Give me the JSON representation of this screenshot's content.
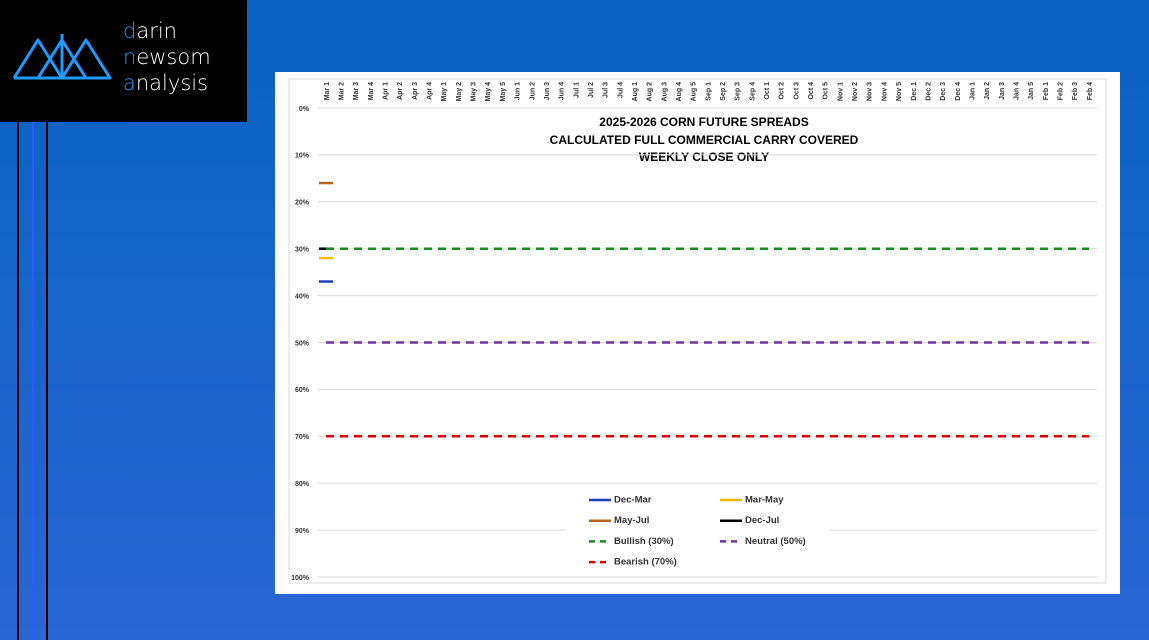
{
  "brand": [
    "darin",
    "newsom",
    "analysis"
  ],
  "chart_data": {
    "type": "line",
    "title": "2025-2026 CORN FUTURE SPREADS",
    "subtitle": "CALCULATED FULL COMMERCIAL CARRY COVERED",
    "note": "WEEKLY CLOSE ONLY",
    "y_inverted": true,
    "grid": true,
    "legend": "bottom",
    "categories": [
      "Mar 1",
      "Mar 2",
      "Mar 3",
      "Mar 4",
      "Apr 1",
      "Apr 2",
      "Apr 3",
      "Apr 4",
      "May 1",
      "May 2",
      "May 3",
      "May 4",
      "May 5",
      "Jun 1",
      "Jun 2",
      "Jun 3",
      "Jun 4",
      "Jul 1",
      "Jul 2",
      "Jul 3",
      "Jul 4",
      "Aug 1",
      "Aug 2",
      "Aug 3",
      "Aug 4",
      "Aug 5",
      "Sep 1",
      "Sep 2",
      "Sep 3",
      "Sep 4",
      "Oct 1",
      "Oct 2",
      "Oct 3",
      "Oct 4",
      "Oct 5",
      "Nov 1",
      "Nov 2",
      "Nov 3",
      "Nov 4",
      "Nov 5",
      "Dec 1",
      "Dec 2",
      "Dec 3",
      "Dec 4",
      "Jan 1",
      "Jan 2",
      "Jan 3",
      "Jan 4",
      "Jan 5",
      "Feb 1",
      "Feb 2",
      "Feb 3",
      "Feb 4"
    ],
    "ylim": [
      0,
      100
    ],
    "yticks": [
      {
        "value": 0,
        "label": "0%"
      },
      {
        "value": 10,
        "label": "10%"
      },
      {
        "value": 20,
        "label": "20%"
      },
      {
        "value": 30,
        "label": "30%"
      },
      {
        "value": 40,
        "label": "40%"
      },
      {
        "value": 50,
        "label": "50%"
      },
      {
        "value": 60,
        "label": "60%"
      },
      {
        "value": 70,
        "label": "70%"
      },
      {
        "value": 80,
        "label": "80%"
      },
      {
        "value": 90,
        "label": "90%"
      },
      {
        "value": 100,
        "label": "100%"
      }
    ],
    "series": [
      {
        "name": "Dec-Mar",
        "color": "#1f3fbf",
        "dashed": false,
        "values": [
          37,
          null,
          null,
          null,
          null,
          null,
          null,
          null,
          null,
          null,
          null,
          null,
          null,
          null,
          null,
          null,
          null,
          null,
          null,
          null,
          null,
          null,
          null,
          null,
          null,
          null,
          null,
          null,
          null,
          null,
          null,
          null,
          null,
          null,
          null,
          null,
          null,
          null,
          null,
          null,
          null,
          null,
          null,
          null,
          null,
          null,
          null,
          null,
          null,
          null,
          null,
          null,
          null
        ]
      },
      {
        "name": "Mar-May",
        "color": "#f5b800",
        "dashed": false,
        "values": [
          32,
          null,
          null,
          null,
          null,
          null,
          null,
          null,
          null,
          null,
          null,
          null,
          null,
          null,
          null,
          null,
          null,
          null,
          null,
          null,
          null,
          null,
          null,
          null,
          null,
          null,
          null,
          null,
          null,
          null,
          null,
          null,
          null,
          null,
          null,
          null,
          null,
          null,
          null,
          null,
          null,
          null,
          null,
          null,
          null,
          null,
          null,
          null,
          null,
          null,
          null,
          null,
          null
        ]
      },
      {
        "name": "May-Jul",
        "color": "#b5651d",
        "dashed": false,
        "values": [
          16,
          null,
          null,
          null,
          null,
          null,
          null,
          null,
          null,
          null,
          null,
          null,
          null,
          null,
          null,
          null,
          null,
          null,
          null,
          null,
          null,
          null,
          null,
          null,
          null,
          null,
          null,
          null,
          null,
          null,
          null,
          null,
          null,
          null,
          null,
          null,
          null,
          null,
          null,
          null,
          null,
          null,
          null,
          null,
          null,
          null,
          null,
          null,
          null,
          null,
          null,
          null,
          null
        ]
      },
      {
        "name": "Dec-Jul",
        "color": "#000000",
        "dashed": false,
        "values": [
          30,
          null,
          null,
          null,
          null,
          null,
          null,
          null,
          null,
          null,
          null,
          null,
          null,
          null,
          null,
          null,
          null,
          null,
          null,
          null,
          null,
          null,
          null,
          null,
          null,
          null,
          null,
          null,
          null,
          null,
          null,
          null,
          null,
          null,
          null,
          null,
          null,
          null,
          null,
          null,
          null,
          null,
          null,
          null,
          null,
          null,
          null,
          null,
          null,
          null,
          null,
          null,
          null
        ]
      },
      {
        "name": "Bullish (30%)",
        "color": "#1a8a1a",
        "dashed": true,
        "values": [
          30,
          30,
          30,
          30,
          30,
          30,
          30,
          30,
          30,
          30,
          30,
          30,
          30,
          30,
          30,
          30,
          30,
          30,
          30,
          30,
          30,
          30,
          30,
          30,
          30,
          30,
          30,
          30,
          30,
          30,
          30,
          30,
          30,
          30,
          30,
          30,
          30,
          30,
          30,
          30,
          30,
          30,
          30,
          30,
          30,
          30,
          30,
          30,
          30,
          30,
          30,
          30,
          30
        ]
      },
      {
        "name": "Neutral (50%)",
        "color": "#7030a0",
        "dashed": true,
        "values": [
          50,
          50,
          50,
          50,
          50,
          50,
          50,
          50,
          50,
          50,
          50,
          50,
          50,
          50,
          50,
          50,
          50,
          50,
          50,
          50,
          50,
          50,
          50,
          50,
          50,
          50,
          50,
          50,
          50,
          50,
          50,
          50,
          50,
          50,
          50,
          50,
          50,
          50,
          50,
          50,
          50,
          50,
          50,
          50,
          50,
          50,
          50,
          50,
          50,
          50,
          50,
          50,
          50
        ]
      },
      {
        "name": "Bearish (70%)",
        "color": "#e00000",
        "dashed": true,
        "values": [
          70,
          70,
          70,
          70,
          70,
          70,
          70,
          70,
          70,
          70,
          70,
          70,
          70,
          70,
          70,
          70,
          70,
          70,
          70,
          70,
          70,
          70,
          70,
          70,
          70,
          70,
          70,
          70,
          70,
          70,
          70,
          70,
          70,
          70,
          70,
          70,
          70,
          70,
          70,
          70,
          70,
          70,
          70,
          70,
          70,
          70,
          70,
          70,
          70,
          70,
          70,
          70,
          70
        ]
      }
    ]
  }
}
